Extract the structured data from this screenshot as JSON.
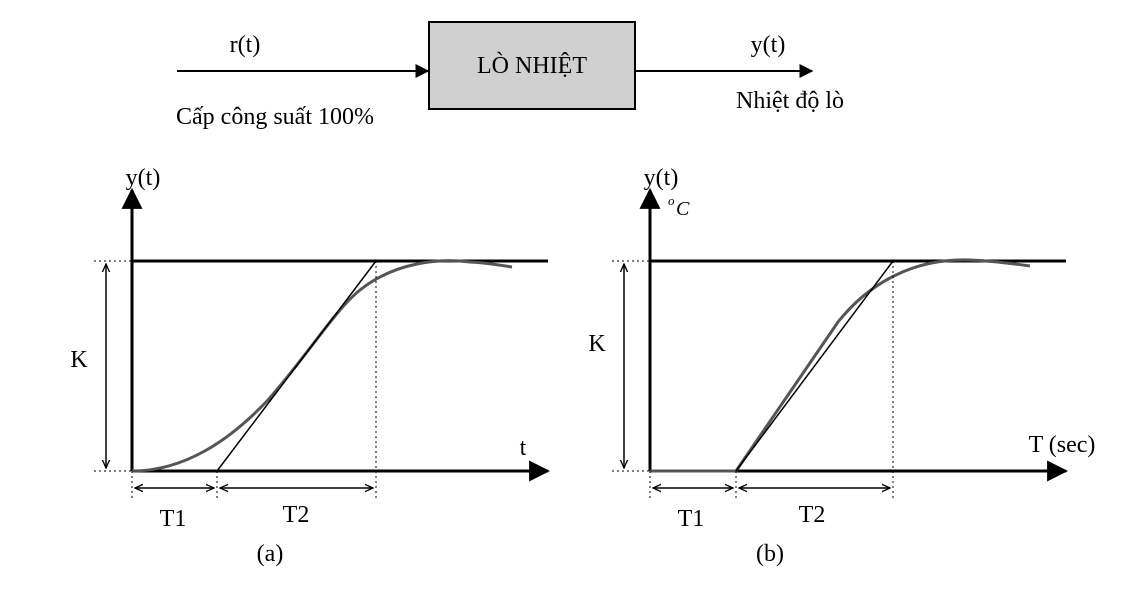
{
  "block": {
    "name": "LÒ NHIỆT",
    "input_signal": "r(t)",
    "input_desc": "Cấp công suất  100%",
    "output_signal": "y(t)",
    "output_desc": "Nhiệt độ lò",
    "fill_color": "#d0d0d0"
  },
  "plot_a": {
    "y_label": "y(t)",
    "x_label": "t",
    "gain_label": "K",
    "t1_label": "T1",
    "t2_label": "T2",
    "caption": "(a)"
  },
  "plot_b": {
    "y_label": "y(t)",
    "unit_o": "o",
    "unit_c": "C",
    "x_label": "T (sec)",
    "gain_label": "K",
    "t1_label": "T1",
    "t2_label": "T2",
    "caption": "(b)"
  },
  "colors": {
    "curve": "#555555",
    "axis": "#000000"
  }
}
